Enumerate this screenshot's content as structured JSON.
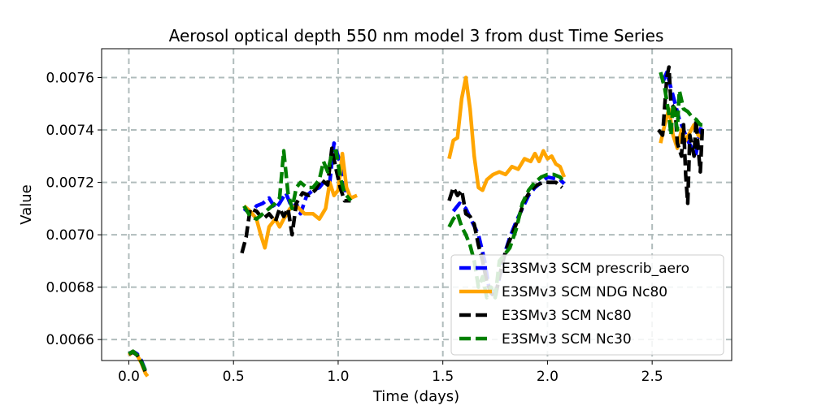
{
  "chart_data": {
    "type": "line",
    "title": "Aerosol optical depth 550 nm model 3 from dust Time Series",
    "xlabel": "Time (days)",
    "ylabel": "Value",
    "xlim": [
      -0.13,
      2.88
    ],
    "ylim": [
      0.00652,
      0.00771
    ],
    "xticks": [
      0.0,
      0.5,
      1.0,
      1.5,
      2.0,
      2.5
    ],
    "xtick_labels": [
      "0.0",
      "0.5",
      "1.0",
      "1.5",
      "2.0",
      "2.5"
    ],
    "yticks": [
      0.0066,
      0.0068,
      0.007,
      0.0072,
      0.0074,
      0.0076
    ],
    "ytick_labels": [
      "0.0066",
      "0.0068",
      "0.0070",
      "0.0072",
      "0.0074",
      "0.0076"
    ],
    "grid": true,
    "legend_position": "lower-right",
    "series": [
      {
        "name": "E3SMv3 SCM prescrib_aero",
        "color": "#0000ff",
        "dashed": true,
        "segments": [
          [
            [
              0.0,
              0.006545
            ],
            [
              0.02,
              0.006555
            ],
            [
              0.04,
              0.006545
            ],
            [
              0.06,
              0.00652
            ],
            [
              0.08,
              0.00648
            ],
            [
              0.085,
              0.00647
            ]
          ],
          [
            [
              0.55,
              0.0071
            ],
            [
              0.58,
              0.00708
            ],
            [
              0.61,
              0.00711
            ],
            [
              0.64,
              0.00712
            ],
            [
              0.67,
              0.00714
            ],
            [
              0.7,
              0.0071
            ],
            [
              0.72,
              0.00712
            ],
            [
              0.75,
              0.00716
            ],
            [
              0.78,
              0.0071
            ],
            [
              0.8,
              0.00712
            ],
            [
              0.82,
              0.00708
            ],
            [
              0.85,
              0.00715
            ],
            [
              0.88,
              0.00717
            ],
            [
              0.91,
              0.00718
            ],
            [
              0.94,
              0.00721
            ],
            [
              0.96,
              0.0072
            ],
            [
              0.98,
              0.00735
            ],
            [
              1.0,
              0.0073
            ],
            [
              1.02,
              0.00724
            ],
            [
              1.04,
              0.00715
            ],
            [
              1.07,
              0.00714
            ]
          ],
          [
            [
              1.55,
              0.00709
            ],
            [
              1.58,
              0.00712
            ],
            [
              1.61,
              0.0071
            ],
            [
              1.64,
              0.00705
            ],
            [
              1.67,
              0.007
            ],
            [
              1.7,
              0.0069
            ],
            [
              1.72,
              0.0068
            ],
            [
              1.74,
              0.00676
            ],
            [
              1.76,
              0.0068
            ],
            [
              1.78,
              0.00687
            ],
            [
              1.8,
              0.00694
            ],
            [
              1.82,
              0.00699
            ],
            [
              1.85,
              0.00705
            ],
            [
              1.88,
              0.0071
            ],
            [
              1.91,
              0.00715
            ],
            [
              1.94,
              0.00718
            ],
            [
              1.97,
              0.0072
            ],
            [
              2.0,
              0.00722
            ],
            [
              2.03,
              0.007215
            ],
            [
              2.06,
              0.00721
            ],
            [
              2.08,
              0.007195
            ]
          ],
          [
            [
              2.55,
              0.00758
            ],
            [
              2.57,
              0.00762
            ],
            [
              2.59,
              0.00756
            ],
            [
              2.61,
              0.0075
            ],
            [
              2.63,
              0.00744
            ],
            [
              2.65,
              0.0074
            ],
            [
              2.67,
              0.00736
            ],
            [
              2.69,
              0.00733
            ],
            [
              2.71,
              0.00731
            ],
            [
              2.73,
              0.0074
            ],
            [
              2.74,
              0.00742
            ]
          ]
        ]
      },
      {
        "name": "E3SMv3 SCM NDG Nc80",
        "color": "#ffa500",
        "dashed": false,
        "segments": [
          [
            [
              0.0,
              0.00654
            ],
            [
              0.02,
              0.006555
            ],
            [
              0.04,
              0.00654
            ],
            [
              0.06,
              0.00651
            ],
            [
              0.08,
              0.00647
            ],
            [
              0.09,
              0.00646
            ]
          ],
          [
            [
              0.55,
              0.00711
            ],
            [
              0.58,
              0.00709
            ],
            [
              0.61,
              0.00706
            ],
            [
              0.63,
              0.007
            ],
            [
              0.65,
              0.00695
            ],
            [
              0.67,
              0.00703
            ],
            [
              0.7,
              0.00706
            ],
            [
              0.72,
              0.00703
            ],
            [
              0.74,
              0.00706
            ],
            [
              0.77,
              0.0071
            ],
            [
              0.8,
              0.00711
            ],
            [
              0.84,
              0.00708
            ],
            [
              0.88,
              0.00708
            ],
            [
              0.91,
              0.00706
            ],
            [
              0.94,
              0.0071
            ],
            [
              0.96,
              0.0072
            ],
            [
              0.98,
              0.00715
            ],
            [
              1.0,
              0.00717
            ],
            [
              1.02,
              0.00731
            ],
            [
              1.04,
              0.00718
            ],
            [
              1.06,
              0.00714
            ],
            [
              1.09,
              0.00715
            ]
          ],
          [
            [
              1.53,
              0.00729
            ],
            [
              1.55,
              0.00736
            ],
            [
              1.57,
              0.00737
            ],
            [
              1.59,
              0.00752
            ],
            [
              1.61,
              0.0076
            ],
            [
              1.63,
              0.00748
            ],
            [
              1.65,
              0.0073
            ],
            [
              1.67,
              0.00718
            ],
            [
              1.69,
              0.00717
            ],
            [
              1.71,
              0.00721
            ],
            [
              1.74,
              0.00723
            ],
            [
              1.77,
              0.00724
            ],
            [
              1.8,
              0.00723
            ],
            [
              1.83,
              0.00726
            ],
            [
              1.86,
              0.00725
            ],
            [
              1.89,
              0.00729
            ],
            [
              1.92,
              0.00728
            ],
            [
              1.94,
              0.00731
            ],
            [
              1.96,
              0.00728
            ],
            [
              1.98,
              0.00732
            ],
            [
              2.0,
              0.00729
            ],
            [
              2.02,
              0.0073
            ],
            [
              2.04,
              0.00727
            ],
            [
              2.06,
              0.00726
            ],
            [
              2.08,
              0.00722
            ]
          ],
          [
            [
              2.54,
              0.00735
            ],
            [
              2.56,
              0.00742
            ],
            [
              2.58,
              0.00748
            ],
            [
              2.6,
              0.00738
            ],
            [
              2.62,
              0.00733
            ],
            [
              2.64,
              0.0074
            ],
            [
              2.66,
              0.00736
            ],
            [
              2.68,
              0.00739
            ],
            [
              2.7,
              0.00742
            ],
            [
              2.72,
              0.00738
            ],
            [
              2.74,
              0.00737
            ]
          ]
        ]
      },
      {
        "name": "E3SMv3 SCM Nc80",
        "color": "#000000",
        "dashed": true,
        "segments": [
          [
            [
              0.0,
              0.006545
            ],
            [
              0.02,
              0.006552
            ],
            [
              0.04,
              0.00654
            ],
            [
              0.06,
              0.006515
            ],
            [
              0.08,
              0.006475
            ]
          ],
          [
            [
              0.54,
              0.00693
            ],
            [
              0.56,
              0.00699
            ],
            [
              0.58,
              0.0071
            ],
            [
              0.61,
              0.00709
            ],
            [
              0.64,
              0.00706
            ],
            [
              0.67,
              0.00708
            ],
            [
              0.7,
              0.00705
            ],
            [
              0.72,
              0.0071
            ],
            [
              0.74,
              0.00707
            ],
            [
              0.76,
              0.0071
            ],
            [
              0.78,
              0.007
            ],
            [
              0.8,
              0.00712
            ],
            [
              0.83,
              0.00716
            ],
            [
              0.86,
              0.00715
            ],
            [
              0.89,
              0.00717
            ],
            [
              0.92,
              0.00721
            ],
            [
              0.95,
              0.00719
            ],
            [
              0.97,
              0.00733
            ],
            [
              0.99,
              0.00725
            ],
            [
              1.01,
              0.00718
            ],
            [
              1.03,
              0.00713
            ],
            [
              1.06,
              0.00713
            ]
          ],
          [
            [
              1.53,
              0.00713
            ],
            [
              1.55,
              0.00718
            ],
            [
              1.57,
              0.00715
            ],
            [
              1.59,
              0.00717
            ],
            [
              1.61,
              0.00708
            ],
            [
              1.63,
              0.00707
            ],
            [
              1.65,
              0.00704
            ],
            [
              1.67,
              0.00696
            ],
            [
              1.69,
              0.0069
            ],
            [
              1.71,
              0.00682
            ],
            [
              1.73,
              0.00678
            ],
            [
              1.75,
              0.00676
            ],
            [
              1.77,
              0.00684
            ],
            [
              1.79,
              0.00691
            ],
            [
              1.81,
              0.00696
            ],
            [
              1.83,
              0.007
            ],
            [
              1.86,
              0.00706
            ],
            [
              1.89,
              0.00713
            ],
            [
              1.92,
              0.00717
            ],
            [
              1.95,
              0.00719
            ],
            [
              1.98,
              0.0072
            ],
            [
              2.01,
              0.0072
            ],
            [
              2.04,
              0.0072
            ],
            [
              2.07,
              0.00718
            ]
          ],
          [
            [
              2.53,
              0.0074
            ],
            [
              2.55,
              0.00738
            ],
            [
              2.57,
              0.0076
            ],
            [
              2.58,
              0.00764
            ],
            [
              2.59,
              0.0075
            ],
            [
              2.61,
              0.00748
            ],
            [
              2.62,
              0.00735
            ],
            [
              2.64,
              0.0073
            ],
            [
              2.65,
              0.00742
            ],
            [
              2.66,
              0.00723
            ],
            [
              2.67,
              0.00712
            ],
            [
              2.68,
              0.00738
            ],
            [
              2.7,
              0.0073
            ],
            [
              2.71,
              0.00744
            ],
            [
              2.72,
              0.00733
            ],
            [
              2.73,
              0.00724
            ],
            [
              2.74,
              0.00741
            ]
          ]
        ]
      },
      {
        "name": "E3SMv3 SCM Nc30",
        "color": "#008000",
        "dashed": true,
        "segments": [
          [
            [
              0.0,
              0.006545
            ],
            [
              0.02,
              0.006555
            ],
            [
              0.04,
              0.00654
            ],
            [
              0.06,
              0.006515
            ],
            [
              0.08,
              0.00648
            ],
            [
              0.085,
              0.006475
            ]
          ],
          [
            [
              0.55,
              0.00711
            ],
            [
              0.58,
              0.00707
            ],
            [
              0.61,
              0.00706
            ],
            [
              0.64,
              0.00708
            ],
            [
              0.67,
              0.0071
            ],
            [
              0.7,
              0.00712
            ],
            [
              0.72,
              0.00714
            ],
            [
              0.74,
              0.00732
            ],
            [
              0.76,
              0.00716
            ],
            [
              0.78,
              0.0071
            ],
            [
              0.8,
              0.00718
            ],
            [
              0.82,
              0.0072
            ],
            [
              0.85,
              0.00718
            ],
            [
              0.88,
              0.00718
            ],
            [
              0.91,
              0.00721
            ],
            [
              0.93,
              0.00728
            ],
            [
              0.95,
              0.00724
            ],
            [
              0.97,
              0.00731
            ],
            [
              0.99,
              0.00732
            ],
            [
              1.01,
              0.00722
            ],
            [
              1.03,
              0.00716
            ],
            [
              1.06,
              0.00713
            ]
          ],
          [
            [
              1.53,
              0.00703
            ],
            [
              1.55,
              0.00706
            ],
            [
              1.57,
              0.00708
            ],
            [
              1.59,
              0.00703
            ],
            [
              1.61,
              0.007
            ],
            [
              1.63,
              0.00696
            ],
            [
              1.65,
              0.0069
            ],
            [
              1.67,
              0.0068
            ],
            [
              1.69,
              0.00684
            ],
            [
              1.71,
              0.00676
            ],
            [
              1.73,
              0.0068
            ],
            [
              1.75,
              0.00676
            ],
            [
              1.77,
              0.0069
            ],
            [
              1.79,
              0.00692
            ],
            [
              1.82,
              0.00695
            ],
            [
              1.85,
              0.00702
            ],
            [
              1.88,
              0.00712
            ],
            [
              1.91,
              0.00717
            ],
            [
              1.94,
              0.0072
            ],
            [
              1.97,
              0.00722
            ],
            [
              2.0,
              0.00723
            ],
            [
              2.03,
              0.00723
            ],
            [
              2.06,
              0.00722
            ],
            [
              2.08,
              0.0072
            ]
          ],
          [
            [
              2.54,
              0.00762
            ],
            [
              2.56,
              0.00756
            ],
            [
              2.58,
              0.00746
            ],
            [
              2.59,
              0.00738
            ],
            [
              2.6,
              0.0075
            ],
            [
              2.62,
              0.0074
            ],
            [
              2.63,
              0.00755
            ],
            [
              2.65,
              0.00748
            ],
            [
              2.67,
              0.00747
            ],
            [
              2.69,
              0.00745
            ],
            [
              2.71,
              0.00744
            ],
            [
              2.73,
              0.00742
            ],
            [
              2.74,
              0.00742
            ]
          ]
        ]
      }
    ]
  }
}
